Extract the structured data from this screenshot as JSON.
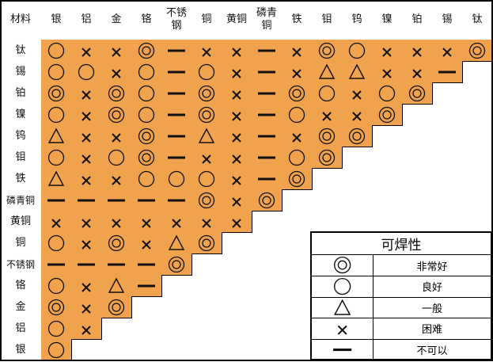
{
  "corner_label": "材料",
  "columns": [
    "银",
    "铝",
    "金",
    "铬",
    "不锈\n钢",
    "铜",
    "黄铜",
    "磷青\n铜",
    "铁",
    "钼",
    "钨",
    "镍",
    "铂",
    "锡",
    "钛"
  ],
  "rows": [
    {
      "label": "钛",
      "cells": [
        "good",
        "poor",
        "poor",
        "excellent",
        "impossible",
        "poor",
        "poor",
        "impossible",
        "poor",
        "excellent",
        "good",
        "poor",
        "poor",
        "poor",
        "excellent"
      ]
    },
    {
      "label": "锡",
      "cells": [
        "good",
        "good",
        "poor",
        "good",
        "impossible",
        "good",
        "poor",
        "impossible",
        "poor",
        "fair",
        "fair",
        "poor",
        "poor",
        "impossible"
      ]
    },
    {
      "label": "铂",
      "cells": [
        "excellent",
        "poor",
        "excellent",
        "good",
        "impossible",
        "excellent",
        "poor",
        "impossible",
        "excellent",
        "good",
        "poor",
        "good",
        "excellent"
      ]
    },
    {
      "label": "镍",
      "cells": [
        "good",
        "poor",
        "excellent",
        "good",
        "impossible",
        "excellent",
        "poor",
        "impossible",
        "good",
        "poor",
        "poor",
        "excellent"
      ]
    },
    {
      "label": "钨",
      "cells": [
        "fair",
        "poor",
        "poor",
        "excellent",
        "impossible",
        "fair",
        "poor",
        "impossible",
        "poor",
        "excellent",
        "excellent"
      ]
    },
    {
      "label": "钼",
      "cells": [
        "good",
        "poor",
        "good",
        "excellent",
        "impossible",
        "poor",
        "poor",
        "impossible",
        "good",
        "excellent"
      ]
    },
    {
      "label": "铁",
      "cells": [
        "fair",
        "poor",
        "poor",
        "good",
        "good",
        "good",
        "poor",
        "impossible",
        "excellent"
      ]
    },
    {
      "label": "磷青铜",
      "cells": [
        "impossible",
        "impossible",
        "impossible",
        "impossible",
        "impossible",
        "excellent",
        "poor",
        "excellent"
      ]
    },
    {
      "label": "黄铜",
      "cells": [
        "poor",
        "poor",
        "poor",
        "poor",
        "poor",
        "poor",
        "poor"
      ]
    },
    {
      "label": "铜",
      "cells": [
        "good",
        "poor",
        "excellent",
        "poor",
        "fair",
        "excellent"
      ]
    },
    {
      "label": "不锈钢",
      "cells": [
        "impossible",
        "impossible",
        "impossible",
        "impossible",
        "excellent"
      ]
    },
    {
      "label": "铬",
      "cells": [
        "good",
        "poor",
        "fair",
        "impossible"
      ]
    },
    {
      "label": "金",
      "cells": [
        "excellent",
        "poor",
        "excellent"
      ]
    },
    {
      "label": "铝",
      "cells": [
        "good",
        "poor"
      ]
    },
    {
      "label": "银",
      "cells": [
        "good"
      ]
    }
  ],
  "legend": {
    "title": "可焊性",
    "items": [
      {
        "code": "excellent",
        "label": "非常好"
      },
      {
        "code": "good",
        "label": "良好"
      },
      {
        "code": "fair",
        "label": "一般"
      },
      {
        "code": "poor",
        "label": "困难"
      },
      {
        "code": "impossible",
        "label": "不可以"
      }
    ]
  },
  "colors": {
    "cell_fill": "#f0a24c",
    "border": "#000000"
  }
}
